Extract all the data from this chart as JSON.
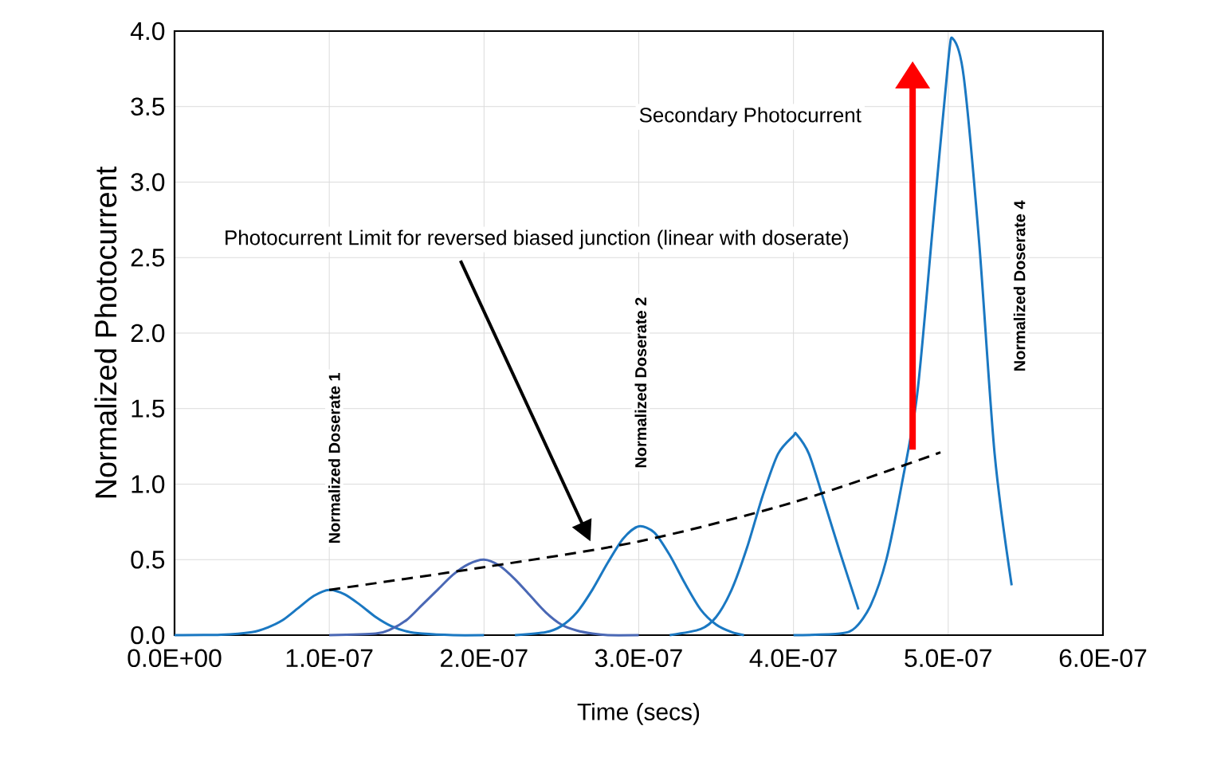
{
  "chart_data": {
    "type": "line",
    "xlabel": "Time (secs)",
    "ylabel": "Normalized Photocurrent",
    "xlim": [
      0,
      6e-07
    ],
    "ylim": [
      0,
      4
    ],
    "xticks": [
      {
        "value": 0,
        "label": "0.0E+00"
      },
      {
        "value": 1e-07,
        "label": "1.0E-07"
      },
      {
        "value": 2e-07,
        "label": "2.0E-07"
      },
      {
        "value": 3e-07,
        "label": "3.0E-07"
      },
      {
        "value": 4e-07,
        "label": "4.0E-07"
      },
      {
        "value": 5e-07,
        "label": "5.0E-07"
      },
      {
        "value": 6e-07,
        "label": "6.0E-07"
      }
    ],
    "yticks": [
      {
        "value": 0,
        "label": "0.0"
      },
      {
        "value": 0.5,
        "label": "0.5"
      },
      {
        "value": 1,
        "label": "1.0"
      },
      {
        "value": 1.5,
        "label": "1.5"
      },
      {
        "value": 2,
        "label": "2.0"
      },
      {
        "value": 2.5,
        "label": "2.5"
      },
      {
        "value": 3,
        "label": "3.0"
      },
      {
        "value": 3.5,
        "label": "3.5"
      },
      {
        "value": 4,
        "label": "4.0"
      }
    ],
    "grid": true,
    "marker": "none",
    "line_style": "solid",
    "series": [
      {
        "color": "#1a78c2",
        "x": [
          0,
          3e-08,
          5e-08,
          6e-08,
          7e-08,
          8e-08,
          9e-08,
          1e-07,
          1.1e-07,
          1.2e-07,
          1.3e-07,
          1.4e-07,
          1.5e-07,
          1.6e-07,
          1.8e-07,
          2e-07
        ],
        "values": [
          0,
          0.003,
          0.02,
          0.05,
          0.1,
          0.18,
          0.26,
          0.3,
          0.27,
          0.2,
          0.12,
          0.06,
          0.025,
          0.01,
          0,
          0
        ]
      },
      {
        "color": "#4a68b5",
        "x": [
          1e-07,
          1.3e-07,
          1.4e-07,
          1.5e-07,
          1.6e-07,
          1.7e-07,
          1.8e-07,
          1.9e-07,
          2e-07,
          2.1e-07,
          2.2e-07,
          2.3e-07,
          2.4e-07,
          2.5e-07,
          2.6e-07,
          2.7e-07,
          2.8e-07,
          3e-07
        ],
        "values": [
          0,
          0.01,
          0.04,
          0.1,
          0.2,
          0.3,
          0.4,
          0.47,
          0.5,
          0.46,
          0.37,
          0.26,
          0.15,
          0.07,
          0.03,
          0.01,
          0,
          0
        ]
      },
      {
        "color": "#1a78c2",
        "x": [
          2.2e-07,
          2.4e-07,
          2.5e-07,
          2.6e-07,
          2.7e-07,
          2.8e-07,
          2.9e-07,
          3e-07,
          3.1e-07,
          3.2e-07,
          3.3e-07,
          3.4e-07,
          3.5e-07,
          3.6e-07,
          3.68e-07
        ],
        "values": [
          0,
          0.02,
          0.06,
          0.15,
          0.3,
          0.48,
          0.64,
          0.72,
          0.68,
          0.53,
          0.34,
          0.17,
          0.07,
          0.02,
          0
        ]
      },
      {
        "color": "#1a78c2",
        "x": [
          3.2e-07,
          3.4e-07,
          3.5e-07,
          3.6e-07,
          3.7e-07,
          3.8e-07,
          3.9e-07,
          4e-07,
          4.02e-07,
          4.1e-07,
          4.2e-07,
          4.3e-07,
          4.42e-07
        ],
        "values": [
          0,
          0.04,
          0.12,
          0.3,
          0.58,
          0.92,
          1.2,
          1.32,
          1.33,
          1.2,
          0.88,
          0.55,
          0.17
        ]
      },
      {
        "color": "#1a78c2",
        "x": [
          4e-07,
          4.3e-07,
          4.4e-07,
          4.5e-07,
          4.6e-07,
          4.7e-07,
          4.8e-07,
          4.9e-07,
          5e-07,
          5.03e-07,
          5.1e-07,
          5.2e-07,
          5.3e-07,
          5.41e-07
        ],
        "values": [
          0,
          0.01,
          0.05,
          0.2,
          0.5,
          1.0,
          1.6,
          2.7,
          3.8,
          3.95,
          3.7,
          2.6,
          1.2,
          0.33
        ]
      },
      {
        "color": "#000000",
        "line_style": "dashed",
        "x": [
          1e-07,
          2e-07,
          3e-07,
          4e-07,
          4.95e-07
        ],
        "values": [
          0.3,
          0.45,
          0.62,
          0.88,
          1.21
        ]
      }
    ],
    "annotations": [
      "Photocurrent Limit for reversed biased junction (linear with doserate)",
      "Secondary Photocurrent",
      "Normalized Doserate 1",
      "Normalized Doserate 2",
      "Normalized Doserate 4"
    ]
  }
}
